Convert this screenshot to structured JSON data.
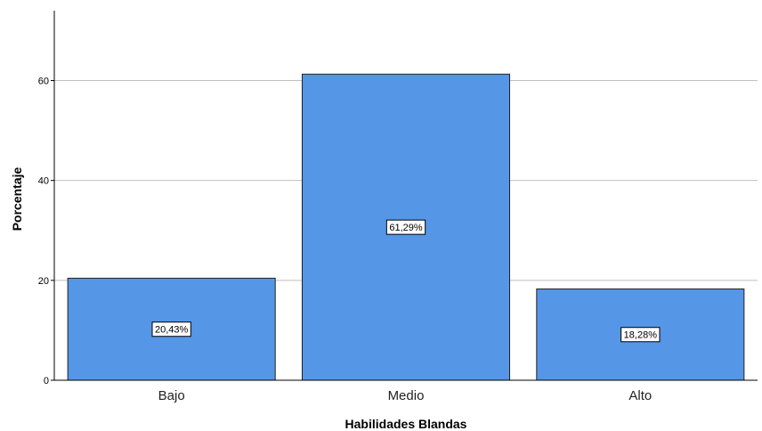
{
  "chart_data": {
    "type": "bar",
    "title": "",
    "xlabel": "Habilidades Blandas",
    "ylabel": "Porcentaje",
    "categories": [
      "Bajo",
      "Medio",
      "Alto"
    ],
    "values": [
      20.43,
      61.29,
      18.28
    ],
    "data_labels": [
      "20,43%",
      "61,29%",
      "18,28%"
    ],
    "ylim": [
      0,
      74
    ],
    "yticks": [
      0,
      20,
      40,
      60
    ],
    "grid": true,
    "bar_color": "#5596e6",
    "bar_stroke": "#222222",
    "gridline_color": "#bfbfbf",
    "legend": "none"
  }
}
